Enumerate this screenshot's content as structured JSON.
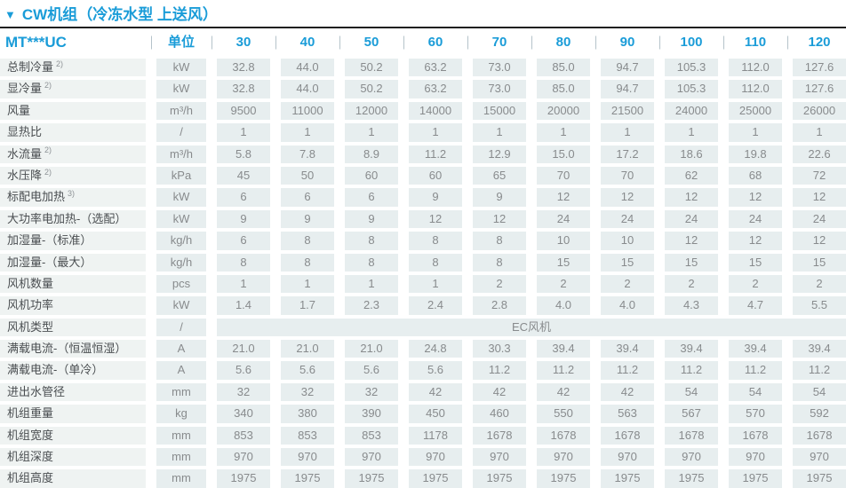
{
  "section": {
    "marker": "▼",
    "title": "CW机组（冷冻水型 上送风）"
  },
  "colors": {
    "accent_blue": "#1a9cd8",
    "label_cell_bg": "#eff3f2",
    "data_cell_bg": "#e7eeef",
    "label_text": "#4a4e51",
    "data_text": "#888b8d",
    "header_rule": "#1f1f1f"
  },
  "table": {
    "model_header": "MT***UC",
    "unit_header": "单位",
    "capacity_columns": [
      "30",
      "40",
      "50",
      "60",
      "70",
      "80",
      "90",
      "100",
      "110",
      "120"
    ],
    "rows": [
      {
        "label": "总制冷量",
        "footnote": "2)",
        "unit": "kW",
        "values": [
          "32.8",
          "44.0",
          "50.2",
          "63.2",
          "73.0",
          "85.0",
          "94.7",
          "105.3",
          "112.0",
          "127.6"
        ]
      },
      {
        "label": "显冷量",
        "footnote": "2)",
        "unit": "kW",
        "values": [
          "32.8",
          "44.0",
          "50.2",
          "63.2",
          "73.0",
          "85.0",
          "94.7",
          "105.3",
          "112.0",
          "127.6"
        ]
      },
      {
        "label": "风量",
        "unit": "m³/h",
        "values": [
          "9500",
          "11000",
          "12000",
          "14000",
          "15000",
          "20000",
          "21500",
          "24000",
          "25000",
          "26000"
        ]
      },
      {
        "label": "显热比",
        "unit": "/",
        "values": [
          "1",
          "1",
          "1",
          "1",
          "1",
          "1",
          "1",
          "1",
          "1",
          "1"
        ]
      },
      {
        "label": "水流量",
        "footnote": "2)",
        "unit": "m³/h",
        "values": [
          "5.8",
          "7.8",
          "8.9",
          "11.2",
          "12.9",
          "15.0",
          "17.2",
          "18.6",
          "19.8",
          "22.6"
        ]
      },
      {
        "label": "水压降",
        "footnote": "2)",
        "unit": "kPa",
        "values": [
          "45",
          "50",
          "60",
          "60",
          "65",
          "70",
          "70",
          "62",
          "68",
          "72"
        ]
      },
      {
        "label": "标配电加热",
        "footnote": "3)",
        "unit": "kW",
        "values": [
          "6",
          "6",
          "6",
          "9",
          "9",
          "12",
          "12",
          "12",
          "12",
          "12"
        ]
      },
      {
        "label": "大功率电加热-（选配）",
        "unit": "kW",
        "values": [
          "9",
          "9",
          "9",
          "12",
          "12",
          "24",
          "24",
          "24",
          "24",
          "24"
        ]
      },
      {
        "label": "加湿量-（标准）",
        "unit": "kg/h",
        "values": [
          "6",
          "8",
          "8",
          "8",
          "8",
          "10",
          "10",
          "12",
          "12",
          "12"
        ]
      },
      {
        "label": "加湿量-（最大）",
        "unit": "kg/h",
        "values": [
          "8",
          "8",
          "8",
          "8",
          "8",
          "15",
          "15",
          "15",
          "15",
          "15"
        ]
      },
      {
        "label": "风机数量",
        "unit": "pcs",
        "values": [
          "1",
          "1",
          "1",
          "1",
          "2",
          "2",
          "2",
          "2",
          "2",
          "2"
        ]
      },
      {
        "label": "风机功率",
        "unit": "kW",
        "values": [
          "1.4",
          "1.7",
          "2.3",
          "2.4",
          "2.8",
          "4.0",
          "4.0",
          "4.3",
          "4.7",
          "5.5"
        ]
      },
      {
        "label": "风机类型",
        "unit": "/",
        "merged_value": "EC风机"
      },
      {
        "label": "满载电流-（恒温恒湿）",
        "unit": "A",
        "values": [
          "21.0",
          "21.0",
          "21.0",
          "24.8",
          "30.3",
          "39.4",
          "39.4",
          "39.4",
          "39.4",
          "39.4"
        ]
      },
      {
        "label": "满载电流-（单冷）",
        "unit": "A",
        "values": [
          "5.6",
          "5.6",
          "5.6",
          "5.6",
          "11.2",
          "11.2",
          "11.2",
          "11.2",
          "11.2",
          "11.2"
        ]
      },
      {
        "label": "进出水管径",
        "unit": "mm",
        "values": [
          "32",
          "32",
          "32",
          "42",
          "42",
          "42",
          "42",
          "54",
          "54",
          "54"
        ]
      },
      {
        "label": "机组重量",
        "unit": "kg",
        "values": [
          "340",
          "380",
          "390",
          "450",
          "460",
          "550",
          "563",
          "567",
          "570",
          "592"
        ]
      },
      {
        "label": "机组宽度",
        "unit": "mm",
        "values": [
          "853",
          "853",
          "853",
          "1178",
          "1678",
          "1678",
          "1678",
          "1678",
          "1678",
          "1678"
        ]
      },
      {
        "label": "机组深度",
        "unit": "mm",
        "values": [
          "970",
          "970",
          "970",
          "970",
          "970",
          "970",
          "970",
          "970",
          "970",
          "970"
        ]
      },
      {
        "label": "机组高度",
        "unit": "mm",
        "values": [
          "1975",
          "1975",
          "1975",
          "1975",
          "1975",
          "1975",
          "1975",
          "1975",
          "1975",
          "1975"
        ]
      }
    ]
  }
}
